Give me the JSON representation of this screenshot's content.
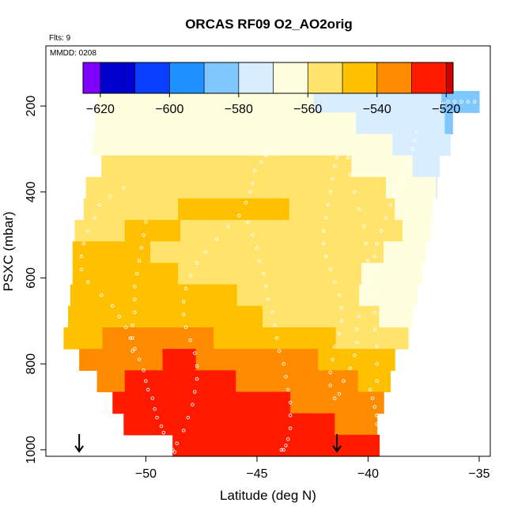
{
  "chart_data": {
    "type": "heatmap",
    "title": "ORCAS RF09 O2_AO2orig",
    "top_left_note": "Flts: 9",
    "inset_note": "MMDD: 0208",
    "xlabel": "Latitude (deg N)",
    "ylabel": "PSXC (mbar)",
    "xlim": [
      -54.5,
      -34.5
    ],
    "ylim": [
      1015,
      60
    ],
    "y_reversed": true,
    "x_ticks": [
      -50,
      -45,
      -40,
      -35
    ],
    "y_ticks": [
      200,
      400,
      600,
      800,
      1000
    ],
    "colorbar": {
      "range": [
        -625,
        -518
      ],
      "ticks": [
        -620,
        -600,
        -580,
        -560,
        -540,
        -520
      ],
      "boundaries": [
        -625,
        -620,
        -610,
        -600,
        -590,
        -580,
        -570,
        -560,
        -550,
        -540,
        -530,
        -520,
        -518
      ],
      "colors": [
        "#7f00ff",
        "#0000cd",
        "#0a3fff",
        "#1e90ff",
        "#7ec8ff",
        "#d8eeff",
        "#ffffe0",
        "#ffe36a",
        "#ffc000",
        "#ff8c00",
        "#ff1a00",
        "#d00000",
        "#8b1a1a"
      ]
    },
    "pressure_levels": [
      190,
      240,
      290,
      340,
      390,
      440,
      490,
      540,
      590,
      640,
      690,
      740,
      790,
      840,
      890,
      940,
      990
    ],
    "row_lat_ranges": [
      [
        -52.2,
        -35
      ],
      [
        -52.3,
        -36.2
      ],
      [
        -52.4,
        -36.3
      ],
      [
        -52,
        -36.8
      ],
      [
        -52.7,
        -36.9
      ],
      [
        -52.8,
        -37.1
      ],
      [
        -53.2,
        -37.2
      ],
      [
        -53.3,
        -37.4
      ],
      [
        -53.3,
        -37.6
      ],
      [
        -53.4,
        -37.8
      ],
      [
        -53.5,
        -38
      ],
      [
        -53.7,
        -38.2
      ],
      [
        -53,
        -38.8
      ],
      [
        -52.2,
        -39
      ],
      [
        -51.5,
        -39.3
      ],
      [
        -51,
        -39.6
      ],
      [
        -48.8,
        -39.5
      ]
    ],
    "field_lat_anchors": [
      -53.5,
      -51,
      -48.5,
      -46,
      -43.5,
      -41.5,
      -39.5,
      -37.5,
      -35
    ],
    "field_values": [
      [
        -568,
        -567,
        -567,
        -568,
        -569,
        -571,
        -574,
        -577,
        -586
      ],
      [
        -564,
        -564,
        -565,
        -565,
        -566,
        -568,
        -572,
        -577,
        -586
      ],
      [
        -562,
        -561,
        -561,
        -562,
        -562,
        -563,
        -568,
        -575,
        -584
      ],
      [
        -559,
        -557,
        -557,
        -556,
        -556,
        -558,
        -563,
        -572,
        -580
      ],
      [
        -555,
        -554,
        -552,
        -550,
        -551,
        -552,
        -559,
        -568,
        -578
      ],
      [
        -553,
        -552,
        -550,
        -550,
        -550,
        -551,
        -557,
        -566,
        -576
      ],
      [
        -551,
        -550,
        -550,
        -551,
        -552,
        -552,
        -556,
        -564,
        -574
      ],
      [
        -550,
        -549,
        -551,
        -554,
        -557,
        -557,
        -559,
        -566,
        -572
      ],
      [
        -547,
        -548,
        -550,
        -553,
        -556,
        -557,
        -562,
        -568,
        -572
      ],
      [
        -546,
        -546,
        -547,
        -550,
        -555,
        -558,
        -562,
        -564,
        -566
      ],
      [
        -544,
        -543,
        -545,
        -548,
        -552,
        -555,
        -560,
        -562,
        -562
      ],
      [
        -542,
        -539,
        -538,
        -541,
        -545,
        -550,
        -554,
        -556,
        -556
      ],
      [
        -536,
        -533,
        -529,
        -532,
        -536,
        -542,
        -548,
        -550,
        -550
      ],
      [
        -532,
        -530,
        -529,
        -530,
        -532,
        -538,
        -542,
        -544,
        -544
      ],
      [
        -528,
        -527,
        -526,
        -528,
        -530,
        -534,
        -538,
        -540,
        -540
      ],
      [
        -525,
        -525,
        -524,
        -526,
        -527,
        -530,
        -533,
        -534,
        -534
      ],
      [
        -522,
        -521,
        -521,
        -523,
        -524,
        -527,
        -528,
        -529,
        -529
      ]
    ],
    "flight_tracks": [
      {
        "lat": [
          -48.7,
          -48.8,
          -49.0,
          -49.0,
          -49.2,
          -49.3,
          -49.5,
          -49.6,
          -49.7,
          -49.9,
          -50.0,
          -50.1,
          -50.3,
          -50.5,
          -50.7,
          -50.9,
          -51.2,
          -51.5,
          -52.0,
          -52.6,
          -52.9,
          -52.9,
          -52.8,
          -52.6,
          -52.3,
          -52.1,
          -51.6,
          -51.0
        ],
        "psxc": [
          1005,
          1000,
          990,
          975,
          960,
          945,
          925,
          905,
          880,
          860,
          840,
          815,
          790,
          765,
          740,
          715,
          690,
          665,
          640,
          610,
          580,
          550,
          520,
          490,
          460,
          430,
          410,
          390
        ]
      },
      {
        "lat": [
          -48.9,
          -48.6,
          -48.3,
          -48.1,
          -47.9,
          -47.8,
          -47.7,
          -47.7,
          -47.8,
          -48.0,
          -48.2,
          -48.3,
          -48.3,
          -48.2,
          -48.0,
          -47.7,
          -47.3,
          -46.8,
          -46.3,
          -45.8,
          -45.5,
          -45.3,
          -45.2,
          -45.1,
          -44.8,
          -44.6,
          -44.4,
          -44.2
        ],
        "psxc": [
          1000,
          985,
          955,
          925,
          895,
          865,
          835,
          805,
          775,
          745,
          715,
          685,
          655,
          625,
          595,
          565,
          540,
          510,
          480,
          455,
          425,
          400,
          380,
          350,
          330,
          315,
          305,
          305
        ]
      },
      {
        "lat": [
          -50.0,
          -50.1,
          -50.2,
          -50.3,
          -50.4,
          -50.5,
          -50.5,
          -50.5,
          -50.6,
          -50.6,
          -50.6
        ],
        "psxc": [
          470,
          500,
          530,
          560,
          590,
          620,
          650,
          680,
          710,
          740,
          770
        ]
      },
      {
        "lat": [
          -45.4,
          -45.2,
          -45.0,
          -44.9,
          -44.7,
          -44.6,
          -44.5,
          -44.3,
          -44.2,
          -44.1,
          -44.0,
          -43.8,
          -43.7,
          -43.6,
          -43.5,
          -43.5,
          -43.5,
          -43.6,
          -43.7,
          -43.8,
          -43.9
        ],
        "psxc": [
          470,
          500,
          530,
          560,
          590,
          620,
          650,
          680,
          710,
          740,
          770,
          800,
          830,
          860,
          890,
          920,
          950,
          975,
          990,
          1000,
          1000
        ]
      },
      {
        "lat": [
          -41.4,
          -41.5,
          -41.6,
          -41.7,
          -41.8,
          -41.9,
          -42.0,
          -42.0,
          -41.9,
          -41.7,
          -41.5,
          -41.3,
          -41.2,
          -41.2,
          -41.3,
          -41.5,
          -41.6,
          -41.7,
          -41.7,
          -41.5,
          -41.3,
          -41.1,
          -40.8,
          -40.6,
          -40.5,
          -40.5,
          -40.4,
          -40.3
        ],
        "psxc": [
          320,
          340,
          370,
          400,
          430,
          460,
          490,
          520,
          550,
          580,
          610,
          640,
          670,
          700,
          730,
          760,
          790,
          820,
          850,
          880,
          870,
          840,
          810,
          780,
          750,
          720,
          690,
          660
        ]
      },
      {
        "lat": [
          -40.9,
          -40.8,
          -40.6,
          -40.4,
          -40.2,
          -40.1,
          -40.0,
          -39.9,
          -39.8,
          -39.7,
          -39.7,
          -39.6,
          -39.6,
          -39.6
        ],
        "psxc": [
          320,
          360,
          400,
          440,
          480,
          520,
          560,
          600,
          640,
          680,
          720,
          760,
          800,
          840
        ]
      },
      {
        "lat": [
          -39.9,
          -39.8,
          -39.7,
          -39.6,
          -39.6,
          -39.5,
          -39.4,
          -39.3,
          -39.2,
          -39.1,
          -39.0
        ],
        "psxc": [
          860,
          880,
          900,
          920,
          940,
          960,
          975,
          985,
          995,
          1000,
          1000
        ]
      },
      {
        "lat": [
          -37.8,
          -37.9,
          -38.0,
          -38.1,
          -38.2,
          -38.4,
          -38.6,
          -38.8,
          -39.0,
          -39.2,
          -39.4,
          -39.6,
          -39.7,
          -39.8
        ],
        "psxc": [
          260,
          280,
          300,
          320,
          340,
          360,
          380,
          400,
          430,
          460,
          490,
          520,
          550,
          580
        ]
      },
      {
        "lat": [
          -35.2,
          -35.5,
          -35.8,
          -36.1,
          -36.4,
          -36.6,
          -36.7
        ],
        "psxc": [
          190,
          190,
          190,
          190,
          190,
          195,
          200
        ]
      }
    ],
    "arrows": [
      {
        "lat": -53,
        "psxc": 1000
      },
      {
        "lat": -41.4,
        "psxc": 1000
      }
    ],
    "legend": "none",
    "grid": false
  }
}
